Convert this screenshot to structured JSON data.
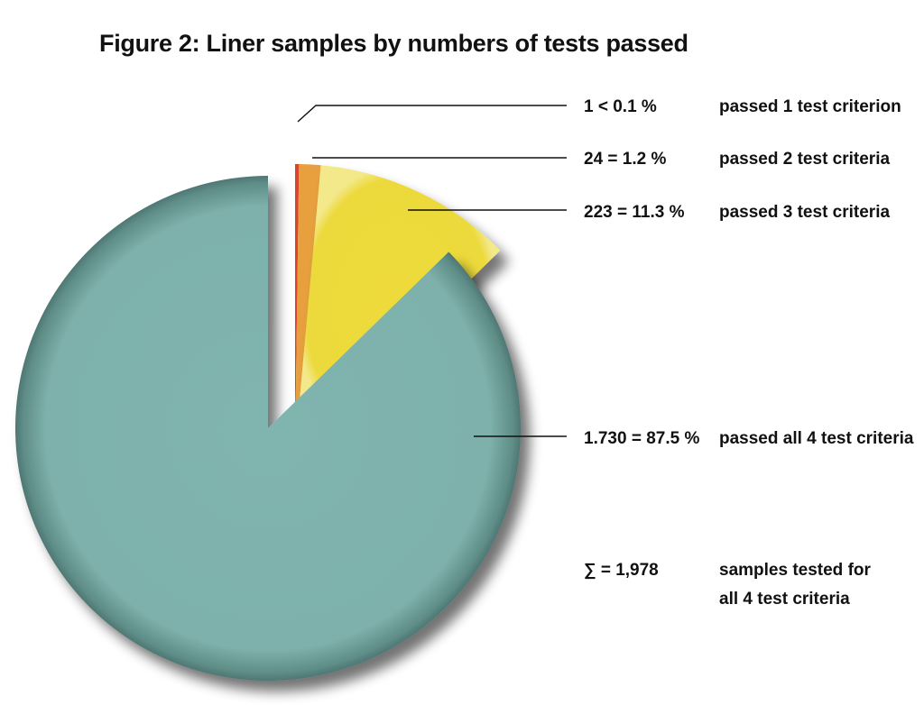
{
  "chart_data": {
    "type": "pie",
    "title": "Figure 2: Liner samples by numbers of tests passed",
    "slices": [
      {
        "value_label": "1 < 0.1 %",
        "description": "passed 1 test criterion",
        "count": 1,
        "percent": 0.05,
        "color": "#d9452c"
      },
      {
        "value_label": "24 = 1.2 %",
        "description": "passed 2 test criteria",
        "count": 24,
        "percent": 1.2,
        "color": "#e7a03c"
      },
      {
        "value_label": "223 = 11.3 %",
        "description": "passed 3 test criteria",
        "count": 223,
        "percent": 11.3,
        "color": "#ecd93a"
      },
      {
        "value_label": "1.730 = 87.5 %",
        "description": "passed all 4 test criteria",
        "count": 1730,
        "percent": 87.5,
        "color": "#7fb3ad"
      }
    ],
    "exploded_slices": [
      0,
      1,
      2
    ],
    "total": {
      "value_label": "∑ = 1,978",
      "description_lines": [
        "samples tested for",
        "all 4 test criteria"
      ]
    }
  }
}
